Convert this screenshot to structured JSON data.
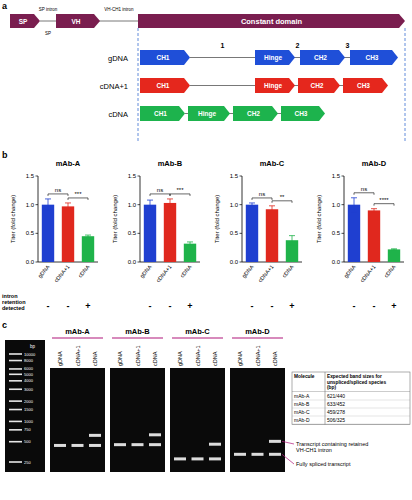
{
  "panel_labels": [
    "a",
    "b",
    "c"
  ],
  "diagram": {
    "header": [
      "SP",
      "VH",
      "Constant domain"
    ],
    "header_color": "#7a1e4f",
    "introns": [
      "SP intron",
      "VH-CH1 intron"
    ],
    "sp_label": "SP",
    "rows": [
      {
        "label": "gDNA",
        "color": "#1f4fd8",
        "segments": [
          "CH1",
          "Hinge",
          "CH2",
          "CH3"
        ],
        "intron_numbers": [
          "1",
          "2",
          "3"
        ]
      },
      {
        "label": "cDNA+1",
        "color": "#e5271d",
        "segments": [
          "CH1",
          "Hinge",
          "CH2",
          "CH3"
        ],
        "intron_numbers": []
      },
      {
        "label": "cDNA",
        "color": "#1db34d",
        "segments": [
          "CH1",
          "Hinge",
          "CH2",
          "CH3"
        ],
        "intron_numbers": []
      }
    ]
  },
  "chart_data": [
    {
      "type": "bar",
      "title": "mAb-A",
      "y_label": "Titer (fold change)",
      "categories": [
        "gDNA",
        "cDNA+1",
        "cDNA"
      ],
      "values": [
        1.0,
        0.97,
        0.45
      ],
      "errors": [
        0.1,
        0.06,
        0.02
      ],
      "colors": [
        "#1f3fd0",
        "#e0281e",
        "#1fb34a"
      ],
      "ylim": [
        0,
        1.5
      ],
      "yticks": [
        {
          "value": 0,
          "label": "0.0"
        },
        {
          "value": 0.5,
          "label": "0.5"
        },
        {
          "value": 1,
          "label": "1.0"
        },
        {
          "value": 1.5,
          "label": "1.5"
        }
      ],
      "annotations": [
        {
          "text": "ns",
          "from": 0,
          "to": 1
        },
        {
          "text": "***",
          "from": 1,
          "to": 2
        }
      ]
    },
    {
      "type": "bar",
      "title": "mAb-B",
      "y_label": "Titer (fold change)",
      "categories": [
        "gDNA",
        "cDNA+1",
        "cDNA"
      ],
      "values": [
        1.0,
        1.03,
        0.32
      ],
      "errors": [
        0.08,
        0.07,
        0.03
      ],
      "colors": [
        "#1f3fd0",
        "#e0281e",
        "#1fb34a"
      ],
      "ylim": [
        0,
        1.5
      ],
      "yticks": [
        {
          "value": 0,
          "label": "0.0"
        },
        {
          "value": 0.5,
          "label": "0.5"
        },
        {
          "value": 1,
          "label": "1.0"
        },
        {
          "value": 1.5,
          "label": "1.5"
        }
      ],
      "annotations": [
        {
          "text": "ns",
          "from": 0,
          "to": 1
        },
        {
          "text": "***",
          "from": 1,
          "to": 2
        }
      ]
    },
    {
      "type": "bar",
      "title": "mAb-C",
      "y_label": "Titer (fold change)",
      "categories": [
        "gDNA",
        "cDNA+1",
        "cDNA"
      ],
      "values": [
        1.0,
        0.92,
        0.38
      ],
      "errors": [
        0.03,
        0.06,
        0.08
      ],
      "colors": [
        "#1f3fd0",
        "#e0281e",
        "#1fb34a"
      ],
      "ylim": [
        0,
        1.5
      ],
      "yticks": [
        {
          "value": 0,
          "label": "0.0"
        },
        {
          "value": 0.5,
          "label": "0.5"
        },
        {
          "value": 1,
          "label": "1.0"
        },
        {
          "value": 1.5,
          "label": "1.5"
        }
      ],
      "annotations": [
        {
          "text": "ns",
          "from": 0,
          "to": 1
        },
        {
          "text": "**",
          "from": 1,
          "to": 2
        }
      ]
    },
    {
      "type": "bar",
      "title": "mAb-D",
      "y_label": "Titer (fold change)",
      "categories": [
        "gDNA",
        "cDNA+1",
        "cDNA"
      ],
      "values": [
        1.0,
        0.9,
        0.22
      ],
      "errors": [
        0.12,
        0.03,
        0.01
      ],
      "colors": [
        "#1f3fd0",
        "#e0281e",
        "#1fb34a"
      ],
      "ylim": [
        0,
        1.5
      ],
      "yticks": [
        {
          "value": 0,
          "label": "0.0"
        },
        {
          "value": 0.5,
          "label": "0.5"
        },
        {
          "value": 1,
          "label": "1.0"
        },
        {
          "value": 1.5,
          "label": "1.5"
        }
      ],
      "annotations": [
        {
          "text": "ns",
          "from": 0,
          "to": 1
        },
        {
          "text": "****",
          "from": 1,
          "to": 2
        }
      ]
    }
  ],
  "intron_retention": {
    "label": "intron retention detected",
    "marks": [
      "-",
      "-",
      "+"
    ]
  },
  "gel": {
    "ladder": {
      "unit": "bp",
      "sizes": [
        10000,
        8000,
        6000,
        5000,
        4000,
        3000,
        2000,
        1500,
        1000,
        750,
        500,
        250
      ]
    },
    "samples": [
      {
        "name": "mAb-A",
        "lanes": [
          "gDNA",
          "cDNA+1",
          "cDNA"
        ],
        "bands": [
          [
            440
          ],
          [
            440
          ],
          [
            621,
            440
          ]
        ]
      },
      {
        "name": "mAb-B",
        "lanes": [
          "gDNA",
          "cDNA+1",
          "cDNA"
        ],
        "bands": [
          [
            452
          ],
          [
            452
          ],
          [
            633,
            452
          ]
        ]
      },
      {
        "name": "mAb-C",
        "lanes": [
          "gDNA",
          "cDNA+1",
          "cDNA"
        ],
        "bands": [
          [
            278
          ],
          [
            278
          ],
          [
            459,
            278
          ]
        ]
      },
      {
        "name": "mAb-D",
        "lanes": [
          "gDNA",
          "cDNA+1",
          "cDNA"
        ],
        "bands": [
          [
            325
          ],
          [
            325
          ],
          [
            506,
            325
          ]
        ]
      }
    ],
    "table": {
      "header": [
        "Molecule",
        "Expected band sizes for unspliced/spliced species (bp)"
      ],
      "rows": [
        [
          "mAb-A",
          "621/440"
        ],
        [
          "mAb-B",
          "633/452"
        ],
        [
          "mAb-C",
          "459/278"
        ],
        [
          "mAb-D",
          "506/325"
        ]
      ]
    },
    "annotations": [
      "Transcript containing retained VH-CH1 intron",
      "Fully spliced transcript"
    ]
  }
}
